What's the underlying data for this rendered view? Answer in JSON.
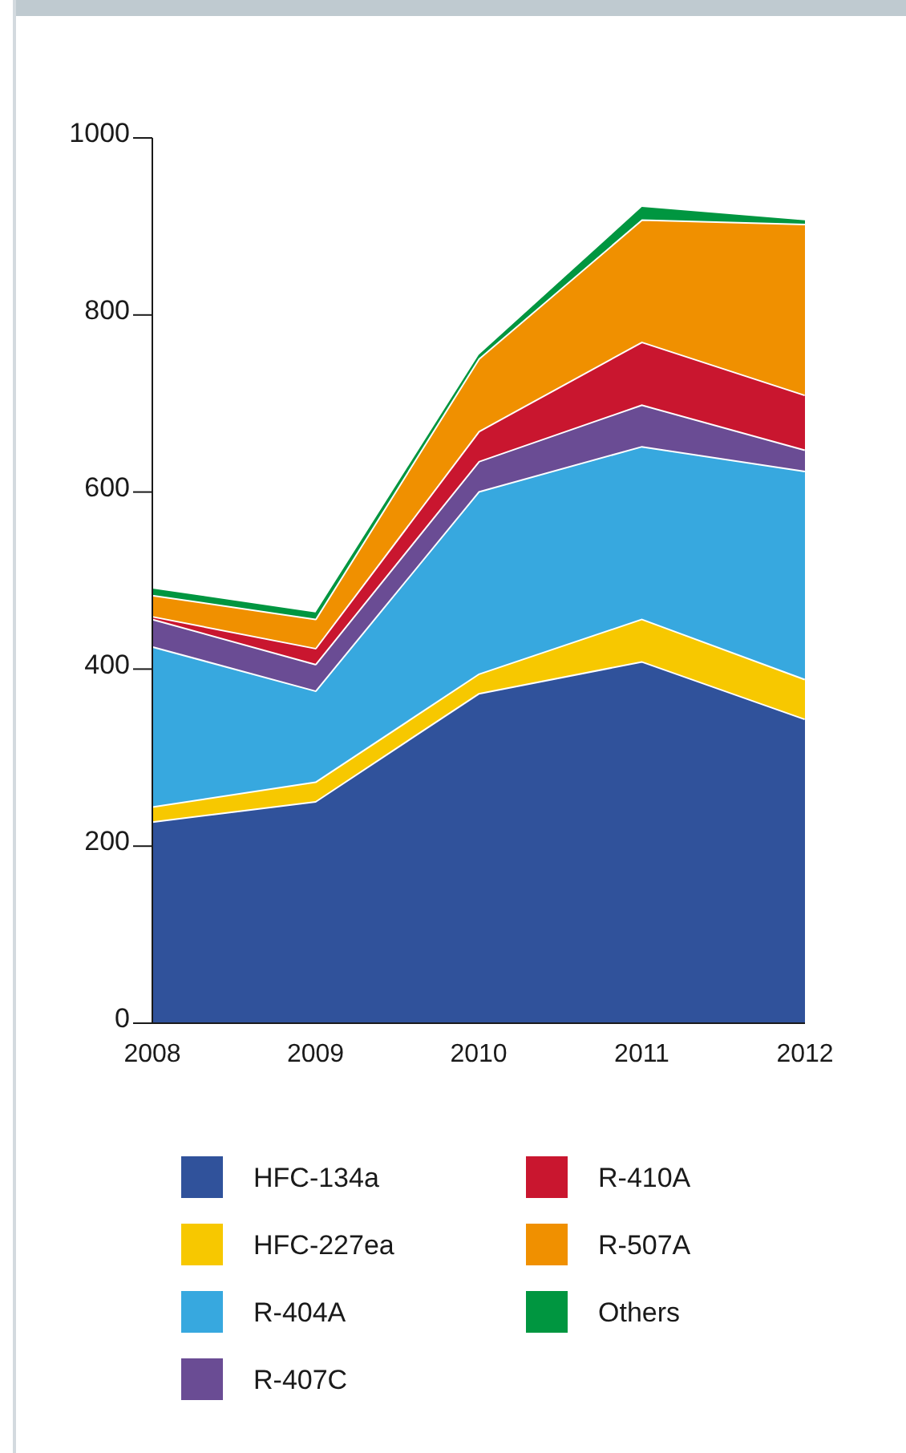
{
  "chart_data": {
    "type": "area",
    "stacked": true,
    "categories": [
      "2008",
      "2009",
      "2010",
      "2011",
      "2012"
    ],
    "series": [
      {
        "name": "HFC-134a",
        "color": "#30529b",
        "values": [
          228,
          251,
          373,
          409,
          344
        ]
      },
      {
        "name": "HFC-227ea",
        "color": "#f7c800",
        "values": [
          17,
          22,
          22,
          48,
          45
        ]
      },
      {
        "name": "R-404A",
        "color": "#37a8df",
        "values": [
          181,
          103,
          206,
          195,
          235
        ]
      },
      {
        "name": "R-407C",
        "color": "#6a4c94",
        "values": [
          31,
          30,
          34,
          47,
          24
        ]
      },
      {
        "name": "R-410A",
        "color": "#c9162f",
        "values": [
          3,
          18,
          34,
          71,
          62
        ]
      },
      {
        "name": "R-507A",
        "color": "#f09000",
        "values": [
          24,
          33,
          82,
          138,
          193
        ]
      },
      {
        "name": "Others",
        "color": "#009640",
        "values": [
          7,
          7,
          4,
          14,
          4
        ]
      }
    ],
    "ylim": [
      0,
      1000
    ],
    "yticks": [
      0,
      200,
      400,
      600,
      800,
      1000
    ],
    "legend": "bottom"
  }
}
